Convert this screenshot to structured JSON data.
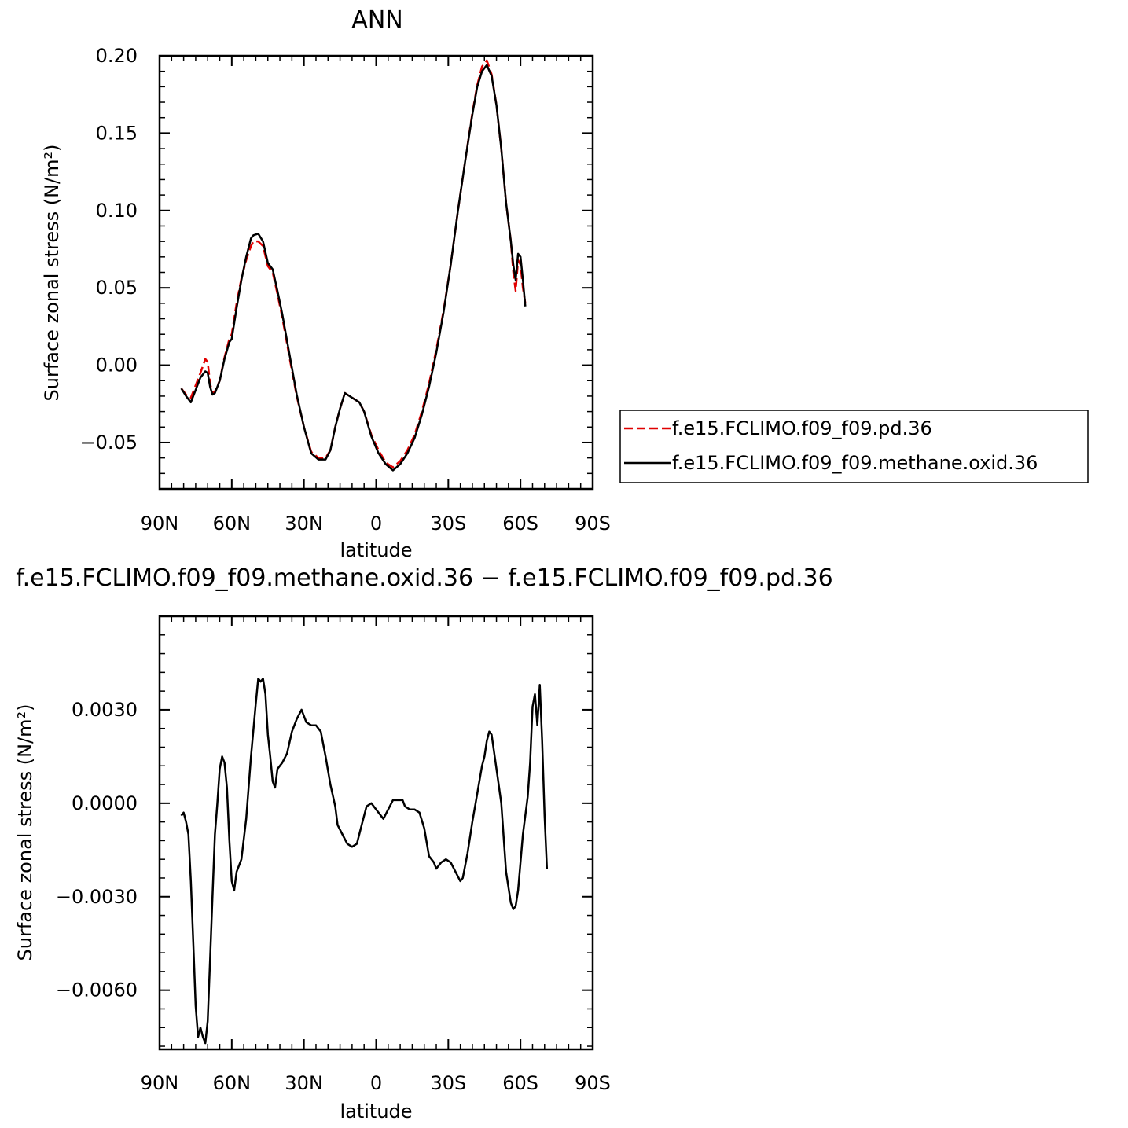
{
  "chart_data": [
    {
      "type": "line",
      "title": "ANN",
      "xlabel": "latitude",
      "ylabel": "Surface zonal stress (N/m²)",
      "xlim": [
        90,
        -90
      ],
      "ylim": [
        -0.08,
        0.2
      ],
      "xticks": [
        90,
        60,
        30,
        0,
        -30,
        -60,
        -90
      ],
      "xtick_labels": [
        "90N",
        "60N",
        "30N",
        "0",
        "30S",
        "60S",
        "90S"
      ],
      "yticks": [
        0.2,
        0.15,
        0.1,
        0.05,
        0.0,
        -0.05
      ],
      "ytick_labels": [
        "0.20",
        "0.15",
        "0.10",
        "0.05",
        "0.00",
        "−0.05"
      ],
      "legend_position": "right, outside plot",
      "series": [
        {
          "name": "f.e15.FCLIMO.f09_f09.pd.36",
          "color": "#e00000",
          "dash": "dashed",
          "points": [
            [
              81,
              -0.015
            ],
            [
              79,
              -0.019
            ],
            [
              77,
              -0.021
            ],
            [
              75,
              -0.013
            ],
            [
              73,
              -0.005
            ],
            [
              71,
              0.004
            ],
            [
              70,
              0.002
            ],
            [
              69,
              -0.012
            ],
            [
              68,
              -0.018
            ],
            [
              67,
              -0.017
            ],
            [
              65,
              -0.01
            ],
            [
              63,
              0.005
            ],
            [
              61,
              0.017
            ],
            [
              60,
              0.02
            ],
            [
              58,
              0.04
            ],
            [
              56,
              0.056
            ],
            [
              54,
              0.068
            ],
            [
              52,
              0.077
            ],
            [
              51,
              0.08
            ],
            [
              49,
              0.08
            ],
            [
              47,
              0.077
            ],
            [
              45,
              0.064
            ],
            [
              43,
              0.06
            ],
            [
              41,
              0.046
            ],
            [
              39,
              0.031
            ],
            [
              36,
              0.005
            ],
            [
              33,
              -0.02
            ],
            [
              30,
              -0.04
            ],
            [
              27,
              -0.056
            ],
            [
              24,
              -0.06
            ],
            [
              21,
              -0.06
            ],
            [
              19,
              -0.055
            ],
            [
              17,
              -0.04
            ],
            [
              15,
              -0.028
            ],
            [
              13,
              -0.018
            ],
            [
              11,
              -0.02
            ],
            [
              9,
              -0.022
            ],
            [
              7,
              -0.024
            ],
            [
              5,
              -0.03
            ],
            [
              2,
              -0.045
            ],
            [
              -1,
              -0.055
            ],
            [
              -4,
              -0.063
            ],
            [
              -7,
              -0.066
            ],
            [
              -10,
              -0.062
            ],
            [
              -13,
              -0.055
            ],
            [
              -16,
              -0.045
            ],
            [
              -19,
              -0.03
            ],
            [
              -22,
              -0.012
            ],
            [
              -25,
              0.01
            ],
            [
              -28,
              0.035
            ],
            [
              -31,
              0.065
            ],
            [
              -34,
              0.1
            ],
            [
              -37,
              0.132
            ],
            [
              -40,
              0.163
            ],
            [
              -42,
              0.181
            ],
            [
              -44,
              0.193
            ],
            [
              -46,
              0.197
            ],
            [
              -48,
              0.188
            ],
            [
              -50,
              0.168
            ],
            [
              -52,
              0.14
            ],
            [
              -54,
              0.105
            ],
            [
              -56,
              0.08
            ],
            [
              -57,
              0.06
            ],
            [
              -58,
              0.048
            ],
            [
              -59,
              0.068
            ],
            [
              -60,
              0.065
            ],
            [
              -61,
              0.05
            ],
            [
              -62,
              0.04
            ]
          ]
        },
        {
          "name": "f.e15.FCLIMO.f09_f09.methane.oxid.36",
          "color": "#000000",
          "dash": "solid",
          "points": [
            [
              81,
              -0.015
            ],
            [
              79,
              -0.02
            ],
            [
              77,
              -0.024
            ],
            [
              75,
              -0.016
            ],
            [
              73,
              -0.008
            ],
            [
              71,
              -0.004
            ],
            [
              70,
              -0.005
            ],
            [
              69,
              -0.014
            ],
            [
              68,
              -0.019
            ],
            [
              67,
              -0.018
            ],
            [
              65,
              -0.01
            ],
            [
              63,
              0.004
            ],
            [
              61,
              0.015
            ],
            [
              60,
              0.017
            ],
            [
              58,
              0.037
            ],
            [
              56,
              0.055
            ],
            [
              54,
              0.07
            ],
            [
              52,
              0.082
            ],
            [
              51,
              0.084
            ],
            [
              49,
              0.085
            ],
            [
              47,
              0.08
            ],
            [
              45,
              0.066
            ],
            [
              43,
              0.062
            ],
            [
              41,
              0.048
            ],
            [
              39,
              0.033
            ],
            [
              36,
              0.007
            ],
            [
              33,
              -0.019
            ],
            [
              30,
              -0.04
            ],
            [
              27,
              -0.057
            ],
            [
              24,
              -0.061
            ],
            [
              21,
              -0.061
            ],
            [
              19,
              -0.055
            ],
            [
              17,
              -0.04
            ],
            [
              15,
              -0.028
            ],
            [
              13,
              -0.018
            ],
            [
              11,
              -0.02
            ],
            [
              9,
              -0.022
            ],
            [
              7,
              -0.024
            ],
            [
              5,
              -0.03
            ],
            [
              2,
              -0.046
            ],
            [
              -1,
              -0.057
            ],
            [
              -4,
              -0.064
            ],
            [
              -7,
              -0.068
            ],
            [
              -10,
              -0.064
            ],
            [
              -13,
              -0.057
            ],
            [
              -16,
              -0.047
            ],
            [
              -19,
              -0.032
            ],
            [
              -22,
              -0.014
            ],
            [
              -25,
              0.008
            ],
            [
              -28,
              0.034
            ],
            [
              -31,
              0.065
            ],
            [
              -34,
              0.1
            ],
            [
              -37,
              0.132
            ],
            [
              -40,
              0.162
            ],
            [
              -42,
              0.18
            ],
            [
              -44,
              0.19
            ],
            [
              -46,
              0.194
            ],
            [
              -48,
              0.187
            ],
            [
              -50,
              0.168
            ],
            [
              -52,
              0.14
            ],
            [
              -54,
              0.105
            ],
            [
              -56,
              0.08
            ],
            [
              -57,
              0.065
            ],
            [
              -58,
              0.055
            ],
            [
              -59,
              0.072
            ],
            [
              -60,
              0.07
            ],
            [
              -61,
              0.055
            ],
            [
              -62,
              0.038
            ]
          ]
        }
      ]
    },
    {
      "type": "line",
      "title": "f.e15.FCLIMO.f09_f09.methane.oxid.36 − f.e15.FCLIMO.f09_f09.pd.36",
      "xlabel": "latitude",
      "ylabel": "Surface zonal stress (N/m²)",
      "xlim": [
        90,
        -90
      ],
      "ylim": [
        -0.0079,
        0.006
      ],
      "xticks": [
        90,
        60,
        30,
        0,
        -30,
        -60,
        -90
      ],
      "xtick_labels": [
        "90N",
        "60N",
        "30N",
        "0",
        "30S",
        "60S",
        "90S"
      ],
      "yticks": [
        0.003,
        0.0,
        -0.003,
        -0.006
      ],
      "ytick_labels": [
        "0.0030",
        "0.0000",
        "−0.0030",
        "−0.0060"
      ],
      "series": [
        {
          "color": "#000000",
          "dash": "solid",
          "points": [
            [
              81,
              -0.0004
            ],
            [
              80,
              -0.0003
            ],
            [
              79,
              -0.0006
            ],
            [
              78,
              -0.001
            ],
            [
              77,
              -0.0025
            ],
            [
              76,
              -0.0045
            ],
            [
              75,
              -0.0065
            ],
            [
              74,
              -0.0075
            ],
            [
              73,
              -0.0072
            ],
            [
              72,
              -0.0075
            ],
            [
              71,
              -0.0077
            ],
            [
              70,
              -0.007
            ],
            [
              69,
              -0.005
            ],
            [
              68,
              -0.003
            ],
            [
              67,
              -0.001
            ],
            [
              66,
              0.0
            ],
            [
              65,
              0.0011
            ],
            [
              64,
              0.0015
            ],
            [
              63,
              0.0013
            ],
            [
              62,
              0.0005
            ],
            [
              61,
              -0.0012
            ],
            [
              60,
              -0.0025
            ],
            [
              59,
              -0.0028
            ],
            [
              58,
              -0.0022
            ],
            [
              56,
              -0.0018
            ],
            [
              54,
              -0.0005
            ],
            [
              52,
              0.0015
            ],
            [
              50,
              0.0032
            ],
            [
              49,
              0.004
            ],
            [
              48,
              0.0039
            ],
            [
              47,
              0.004
            ],
            [
              46,
              0.0035
            ],
            [
              45,
              0.0022
            ],
            [
              44,
              0.0015
            ],
            [
              43,
              0.0007
            ],
            [
              42,
              0.0005
            ],
            [
              41,
              0.0011
            ],
            [
              39,
              0.0013
            ],
            [
              37,
              0.0016
            ],
            [
              35,
              0.0023
            ],
            [
              33,
              0.0027
            ],
            [
              31,
              0.003
            ],
            [
              29,
              0.0026
            ],
            [
              27,
              0.0025
            ],
            [
              25,
              0.0025
            ],
            [
              23,
              0.0023
            ],
            [
              21,
              0.0015
            ],
            [
              19,
              0.0006
            ],
            [
              17,
              -0.0001
            ],
            [
              16,
              -0.0007
            ],
            [
              14,
              -0.001
            ],
            [
              12,
              -0.0013
            ],
            [
              10,
              -0.0014
            ],
            [
              8,
              -0.0013
            ],
            [
              6,
              -0.0007
            ],
            [
              4,
              -0.0001
            ],
            [
              2,
              0.0
            ],
            [
              0,
              -0.0002
            ],
            [
              -2,
              -0.0004
            ],
            [
              -3,
              -0.0005
            ],
            [
              -5,
              -0.0002
            ],
            [
              -7,
              0.0001
            ],
            [
              -9,
              0.0001
            ],
            [
              -11,
              0.0001
            ],
            [
              -12,
              -0.0001
            ],
            [
              -14,
              -0.0002
            ],
            [
              -16,
              -0.0002
            ],
            [
              -18,
              -0.0003
            ],
            [
              -20,
              -0.0008
            ],
            [
              -22,
              -0.0017
            ],
            [
              -24,
              -0.0019
            ],
            [
              -25,
              -0.0021
            ],
            [
              -27,
              -0.0019
            ],
            [
              -29,
              -0.0018
            ],
            [
              -31,
              -0.0019
            ],
            [
              -33,
              -0.0022
            ],
            [
              -35,
              -0.0025
            ],
            [
              -36,
              -0.0024
            ],
            [
              -38,
              -0.0016
            ],
            [
              -40,
              -0.0006
            ],
            [
              -42,
              0.0003
            ],
            [
              -44,
              0.0012
            ],
            [
              -45,
              0.0015
            ],
            [
              -46,
              0.002
            ],
            [
              -47,
              0.0023
            ],
            [
              -48,
              0.0022
            ],
            [
              -50,
              0.0011
            ],
            [
              -52,
              0.0
            ],
            [
              -54,
              -0.0022
            ],
            [
              -56,
              -0.0032
            ],
            [
              -57,
              -0.0034
            ],
            [
              -58,
              -0.0033
            ],
            [
              -59,
              -0.0028
            ],
            [
              -61,
              -0.001
            ],
            [
              -63,
              0.0002
            ],
            [
              -64,
              0.0013
            ],
            [
              -65,
              0.0031
            ],
            [
              -66,
              0.0035
            ],
            [
              -67,
              0.0025
            ],
            [
              -68,
              0.0038
            ],
            [
              -69,
              0.002
            ],
            [
              -70,
              -0.0004
            ],
            [
              -71,
              -0.0021
            ]
          ]
        }
      ]
    }
  ]
}
